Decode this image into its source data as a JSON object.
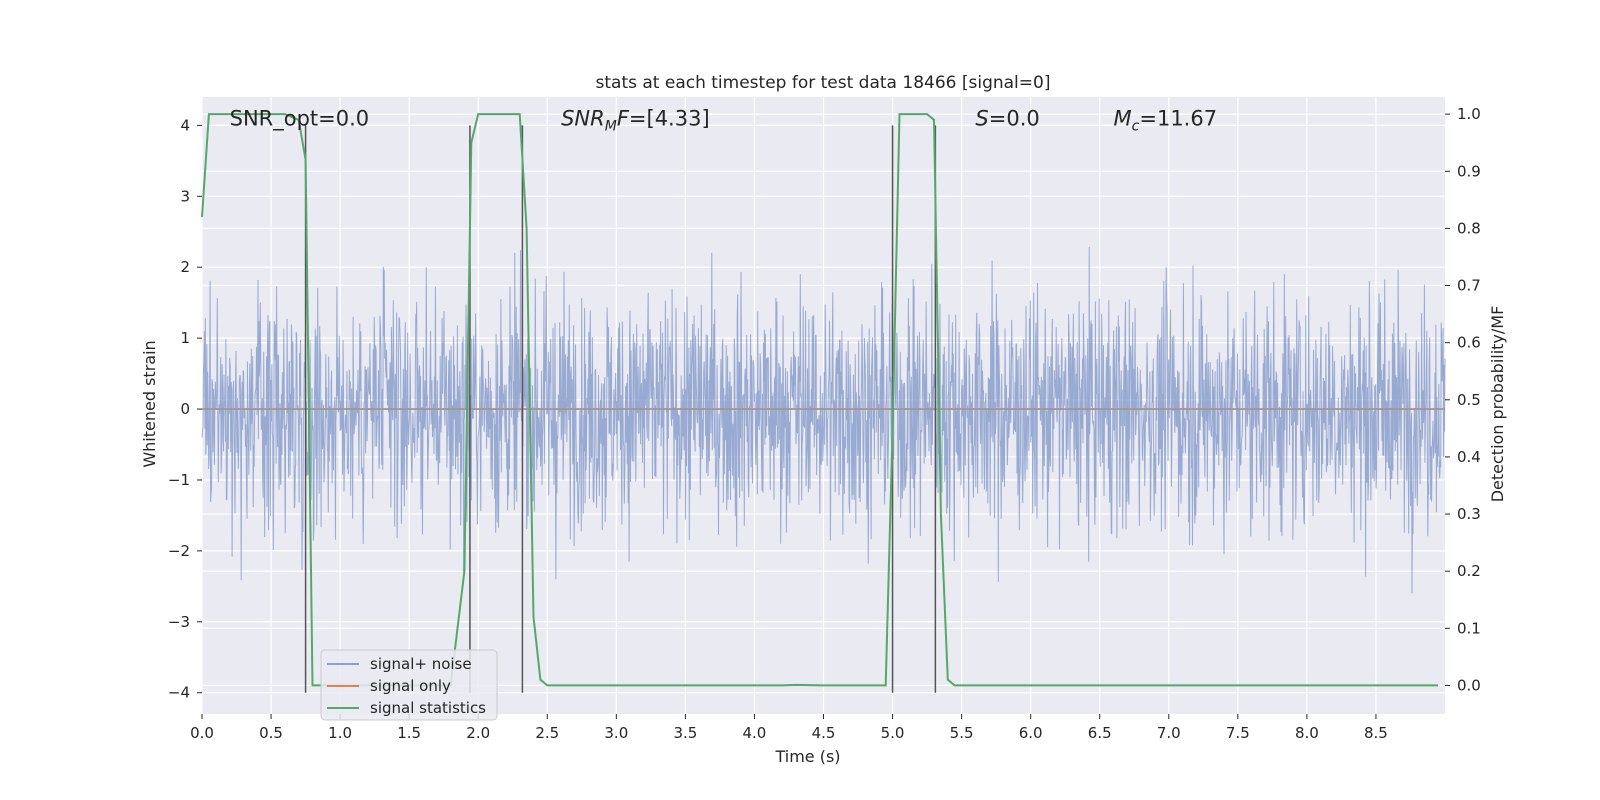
{
  "chart_data": {
    "type": "line",
    "title": "stats at each timestep for test data 18466 [signal=0]",
    "xlabel": "Time (s)",
    "ylabel_left": "Whitened strain",
    "ylabel_right": "Detection probability/MF",
    "xlim": [
      0.0,
      9.0
    ],
    "ylim_left": [
      -4.3,
      4.4
    ],
    "ylim_right": [
      -0.05,
      1.03
    ],
    "xticks": [
      0.0,
      0.5,
      1.0,
      1.5,
      2.0,
      2.5,
      3.0,
      3.5,
      4.0,
      4.5,
      5.0,
      5.5,
      6.0,
      6.5,
      7.0,
      7.5,
      8.0,
      8.5
    ],
    "xtick_labels": [
      "0.0",
      "0.5",
      "1.0",
      "1.5",
      "2.0",
      "2.5",
      "3.0",
      "3.5",
      "4.0",
      "4.5",
      "5.0",
      "5.5",
      "6.0",
      "6.5",
      "7.0",
      "7.5",
      "8.0",
      "8.5"
    ],
    "yticks_left": [
      -4,
      -3,
      -2,
      -1,
      0,
      1,
      2,
      3,
      4
    ],
    "ytick_labels_left": [
      "−4",
      "−3",
      "−2",
      "−1",
      "0",
      "1",
      "2",
      "3",
      "4"
    ],
    "yticks_right": [
      0.0,
      0.1,
      0.2,
      0.3,
      0.4,
      0.5,
      0.6,
      0.7,
      0.8,
      0.9,
      1.0
    ],
    "ytick_labels_right": [
      "0.0",
      "0.1",
      "0.2",
      "0.3",
      "0.4",
      "0.5",
      "0.6",
      "0.7",
      "0.8",
      "0.9",
      "1.0"
    ],
    "grid": true,
    "legend_position": "lower-left",
    "legend": [
      {
        "label": "signal+ noise",
        "color": "#8a9fcc"
      },
      {
        "label": "signal only",
        "color": "#dd8452"
      },
      {
        "label": "signal statistics",
        "color": "#55a868"
      }
    ],
    "annotations": [
      {
        "text": "SNR_opt=0.0",
        "x": 0.2,
        "y": 4.1
      },
      {
        "text": "SNR_MF=[4.33]",
        "x": 2.6,
        "y": 4.1
      },
      {
        "text": "S=0.0",
        "x": 5.6,
        "y": 4.1
      },
      {
        "text": "M_c=11.67",
        "x": 6.6,
        "y": 4.1
      }
    ],
    "series": [
      {
        "name": "signal+ noise",
        "axis": "left",
        "color": "#8a9fcc",
        "description_range": [
          -4.0,
          4.0
        ],
        "x_range": [
          0.0,
          9.0
        ]
      },
      {
        "name": "signal only",
        "axis": "left",
        "color": "#dd8452",
        "x": [
          0.0,
          9.0
        ],
        "y": [
          0.0,
          0.0
        ]
      },
      {
        "name": "signal statistics",
        "axis": "right",
        "color": "#55a868",
        "x": [
          0.0,
          0.05,
          0.1,
          0.15,
          0.2,
          0.3,
          0.4,
          0.5,
          0.6,
          0.7,
          0.75,
          0.8,
          0.85,
          0.9,
          1.0,
          1.2,
          1.4,
          1.6,
          1.8,
          1.9,
          1.95,
          2.0,
          2.05,
          2.1,
          2.2,
          2.3,
          2.35,
          2.4,
          2.45,
          2.5,
          2.55,
          2.6,
          3.0,
          3.5,
          4.0,
          4.2,
          4.3,
          4.5,
          4.8,
          4.95,
          5.0,
          5.05,
          5.1,
          5.2,
          5.25,
          5.3,
          5.35,
          5.4,
          5.45,
          5.5,
          6.0,
          7.0,
          8.0,
          8.95
        ],
        "y": [
          0.82,
          1.0,
          1.0,
          1.0,
          1.0,
          1.0,
          1.0,
          1.0,
          1.0,
          0.99,
          0.92,
          0.0,
          0.0,
          0.0,
          0.0,
          0.0,
          0.0,
          0.0,
          0.0,
          0.2,
          0.95,
          1.0,
          1.0,
          1.0,
          1.0,
          1.0,
          0.8,
          0.12,
          0.01,
          0.0,
          0.0,
          0.0,
          0.0,
          0.0,
          0.0,
          0.0,
          0.001,
          0.0,
          0.0,
          0.0,
          0.45,
          1.0,
          1.0,
          1.0,
          1.0,
          0.99,
          0.3,
          0.01,
          0.0,
          0.0,
          0.0,
          0.0,
          0.0,
          0.0
        ]
      }
    ],
    "vlines": [
      {
        "x": 0.75,
        "ymin": -4.0,
        "ymax": 4.0,
        "color": "#555555"
      },
      {
        "x": 1.94,
        "ymin": -4.0,
        "ymax": 4.0,
        "color": "#555555"
      },
      {
        "x": 2.32,
        "ymin": -4.0,
        "ymax": 4.0,
        "color": "#555555"
      },
      {
        "x": 5.0,
        "ymin": -4.0,
        "ymax": 4.0,
        "color": "#555555"
      },
      {
        "x": 5.31,
        "ymin": -4.0,
        "ymax": 4.0,
        "color": "#555555"
      }
    ]
  }
}
